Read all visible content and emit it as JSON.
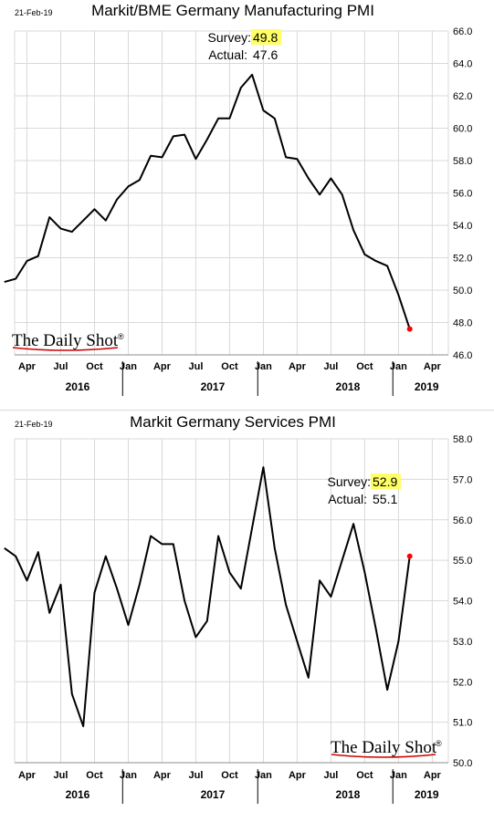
{
  "chart_data": [
    {
      "type": "line",
      "date": "21-Feb-19",
      "title": "Markit/BME Germany Manufacturing PMI",
      "survey_label": "Survey:",
      "survey_value": "49.8",
      "actual_label": "Actual:",
      "actual_value": "47.6",
      "brand": "The Daily Shot",
      "brand_mark": "®",
      "ylim": [
        46.0,
        66.0
      ],
      "yticks": [
        "46.0",
        "48.0",
        "50.0",
        "52.0",
        "54.0",
        "56.0",
        "58.0",
        "60.0",
        "62.0",
        "64.0",
        "66.0"
      ],
      "month_ticks": [
        "Apr",
        "Jul",
        "Oct",
        "Jan",
        "Apr",
        "Jul",
        "Oct",
        "Jan",
        "Apr",
        "Jul",
        "Oct",
        "Jan",
        "Apr"
      ],
      "years": [
        "2016",
        "2017",
        "2018",
        "2019"
      ],
      "x": [
        "2016-02",
        "2016-03",
        "2016-04",
        "2016-05",
        "2016-06",
        "2016-07",
        "2016-08",
        "2016-09",
        "2016-10",
        "2016-11",
        "2016-12",
        "2017-01",
        "2017-02",
        "2017-03",
        "2017-04",
        "2017-05",
        "2017-06",
        "2017-07",
        "2017-08",
        "2017-09",
        "2017-10",
        "2017-11",
        "2017-12",
        "2018-01",
        "2018-02",
        "2018-03",
        "2018-04",
        "2018-05",
        "2018-06",
        "2018-07",
        "2018-08",
        "2018-09",
        "2018-10",
        "2018-11",
        "2018-12",
        "2019-01",
        "2019-02"
      ],
      "values": [
        50.5,
        50.7,
        51.8,
        52.1,
        54.5,
        53.8,
        53.6,
        54.3,
        55.0,
        54.3,
        55.6,
        56.4,
        56.8,
        58.3,
        58.2,
        59.5,
        59.6,
        58.1,
        59.3,
        60.6,
        60.6,
        62.5,
        63.3,
        61.1,
        60.6,
        58.2,
        58.1,
        56.9,
        55.9,
        56.9,
        55.9,
        53.7,
        52.2,
        51.8,
        51.5,
        49.7,
        47.6
      ],
      "highlight": {
        "x": "2019-02",
        "y": 47.6
      },
      "highlight_color": "#ff0000",
      "line_color": "#000000",
      "survey_highlight_color": "#ffff66"
    },
    {
      "type": "line",
      "date": "21-Feb-19",
      "title": "Markit Germany Services PMI",
      "survey_label": "Survey:",
      "survey_value": "52.9",
      "actual_label": "Actual:",
      "actual_value": "55.1",
      "brand": "The Daily Shot",
      "brand_mark": "®",
      "ylim": [
        50.0,
        58.0
      ],
      "yticks": [
        "50.0",
        "51.0",
        "52.0",
        "53.0",
        "54.0",
        "55.0",
        "56.0",
        "57.0",
        "58.0"
      ],
      "month_ticks": [
        "Apr",
        "Jul",
        "Oct",
        "Jan",
        "Apr",
        "Jul",
        "Oct",
        "Jan",
        "Apr",
        "Jul",
        "Oct",
        "Jan",
        "Apr"
      ],
      "years": [
        "2016",
        "2017",
        "2018",
        "2019"
      ],
      "x": [
        "2016-02",
        "2016-03",
        "2016-04",
        "2016-05",
        "2016-06",
        "2016-07",
        "2016-08",
        "2016-09",
        "2016-10",
        "2016-11",
        "2016-12",
        "2017-01",
        "2017-02",
        "2017-03",
        "2017-04",
        "2017-05",
        "2017-06",
        "2017-07",
        "2017-08",
        "2017-09",
        "2017-10",
        "2017-11",
        "2017-12",
        "2018-01",
        "2018-02",
        "2018-03",
        "2018-04",
        "2018-05",
        "2018-06",
        "2018-07",
        "2018-08",
        "2018-09",
        "2018-10",
        "2018-11",
        "2018-12",
        "2019-01",
        "2019-02"
      ],
      "values": [
        55.3,
        55.1,
        54.5,
        55.2,
        53.7,
        54.4,
        51.7,
        50.9,
        54.2,
        55.1,
        54.3,
        53.4,
        54.4,
        55.6,
        55.4,
        55.4,
        54.0,
        53.1,
        53.5,
        55.6,
        54.7,
        54.3,
        55.8,
        57.3,
        55.3,
        53.9,
        53.0,
        52.1,
        54.5,
        54.1,
        55.0,
        55.9,
        54.7,
        53.3,
        51.8,
        53.0,
        55.1
      ],
      "highlight": {
        "x": "2019-02",
        "y": 55.1
      },
      "highlight_color": "#ff0000",
      "line_color": "#000000",
      "survey_highlight_color": "#ffff66"
    }
  ]
}
